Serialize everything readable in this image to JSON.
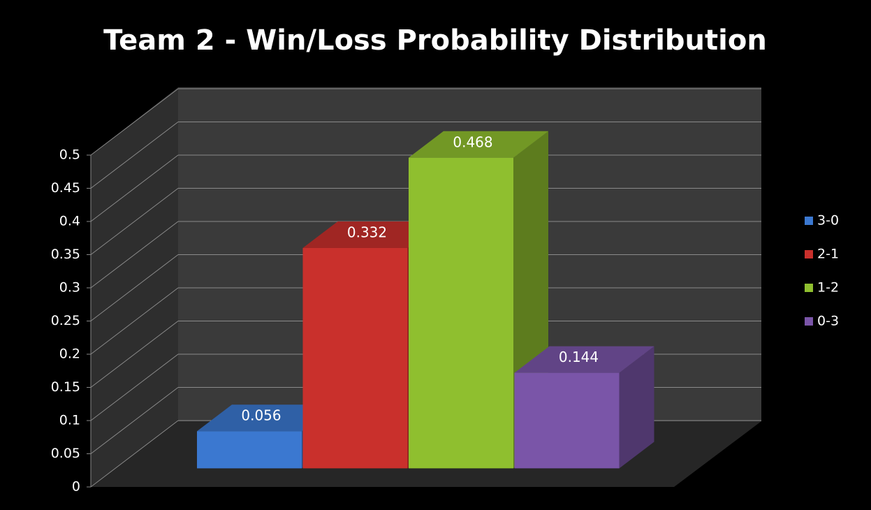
{
  "chart_data": {
    "type": "bar3d",
    "title": "Team 2 - Win/Loss Probability Distribution",
    "series": [
      {
        "name": "3-0",
        "color": "#3b78d0",
        "values": [
          0.056
        ]
      },
      {
        "name": "2-1",
        "color": "#c9302c",
        "values": [
          0.332
        ]
      },
      {
        "name": "1-2",
        "color": "#8fbf2f",
        "values": [
          0.468
        ]
      },
      {
        "name": "0-3",
        "color": "#7a55a8",
        "values": [
          0.144
        ]
      }
    ],
    "ylim": [
      0,
      0.5
    ],
    "yticks": [
      0,
      0.05,
      0.1,
      0.15,
      0.2,
      0.25,
      0.3,
      0.35,
      0.4,
      0.45,
      0.5
    ],
    "grid": true,
    "legend": "right",
    "data_labels": true
  }
}
